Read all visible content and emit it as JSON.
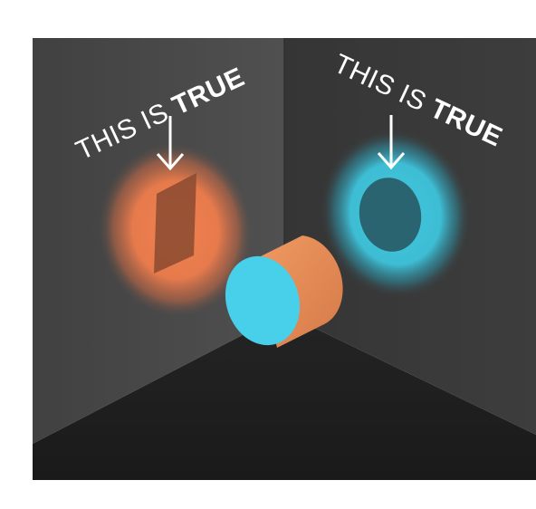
{
  "left_label": {
    "prefix": "THIS IS ",
    "emphasis": "TRUE"
  },
  "right_label": {
    "prefix": "THIS IS ",
    "emphasis": "TRUE"
  },
  "colors": {
    "left_wall": "#4a4a4a",
    "right_wall": "#3a3a3a",
    "floor": "#1f1f1f",
    "orange_glow": "#f08050",
    "orange_shadow": "#8a4a30",
    "cyan_glow": "#40c8e0",
    "cyan_shadow": "#2a6470",
    "cylinder_side": "#e58a55",
    "cylinder_face": "#48cfea",
    "label": "#ffffff"
  },
  "icons": {
    "left_arrow": "arrow-down-icon",
    "right_arrow": "arrow-down-icon"
  }
}
